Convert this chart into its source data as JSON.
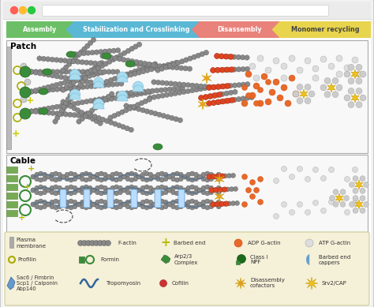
{
  "figsize": [
    4.74,
    3.89
  ],
  "dpi": 100,
  "browser_dots": [
    "#ff5f57",
    "#febc2e",
    "#28c840"
  ],
  "arrow_labels": [
    "Assembly",
    "Stabilization and Crosslinking",
    "Disassembly",
    "Monomer recycling"
  ],
  "arrow_colors": [
    "#6dbf67",
    "#5ab8d5",
    "#e8827a",
    "#e8d44d"
  ],
  "arrow_text_color": "#333333",
  "patch_label": "Patch",
  "cable_label": "Cable",
  "legend_bg": "#f5f0d8",
  "panel_bg": "#f8f8f8",
  "actin_color": "#888888",
  "actin_edge": "#555555",
  "arp23_color": "#4a9e4a",
  "formin_color": "#3a8c3a",
  "barbed_color": "#bbbb00",
  "adp_color": "#e8692a",
  "atp_color": "#cccccc",
  "red_color": "#cc3333",
  "star_color": "#f0c020",
  "blue_color": "#5599cc",
  "membrane_color": "#88aa66",
  "tropomyo_color": "#336699"
}
